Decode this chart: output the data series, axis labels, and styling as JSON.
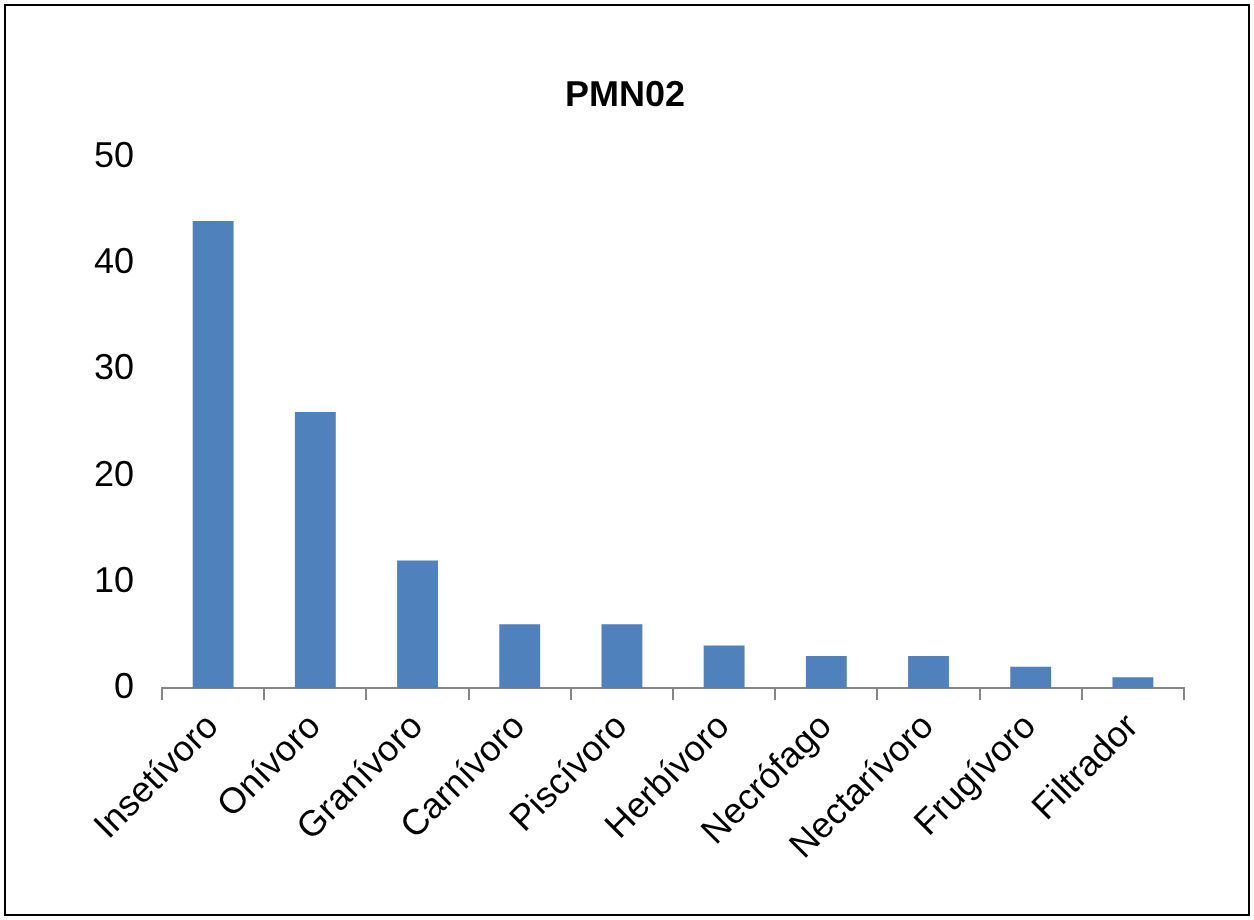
{
  "chart_data": {
    "type": "bar",
    "title": "PMN02",
    "categories": [
      "Insetívoro",
      "Onívoro",
      "Granívoro",
      "Carnívoro",
      "Piscívoro",
      "Herbívoro",
      "Necrófago",
      "Nectarívoro",
      "Frugívoro",
      "Filtrador"
    ],
    "values": [
      44,
      26,
      12,
      6,
      6,
      4,
      3,
      3,
      2,
      1
    ],
    "color": "#4f81bd",
    "ylim": [
      0,
      50
    ],
    "yticks": [
      0,
      10,
      20,
      30,
      40,
      50
    ],
    "grid": false,
    "legend": false
  }
}
